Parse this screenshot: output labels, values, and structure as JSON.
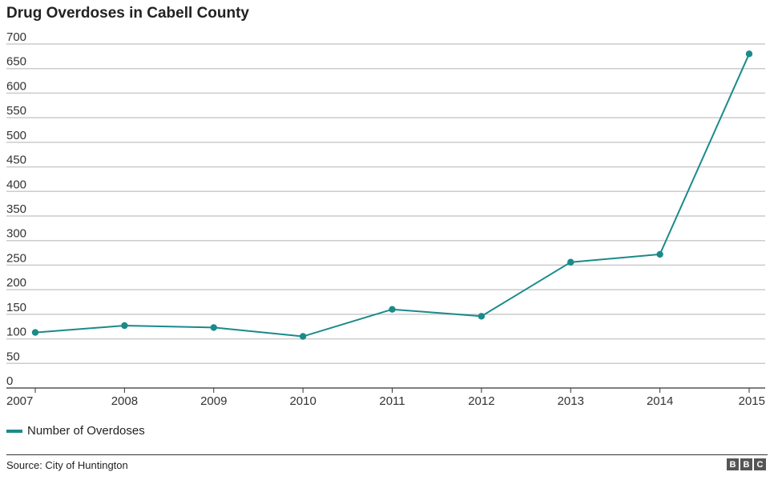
{
  "chart_data": {
    "type": "line",
    "title": "Drug Overdoses in Cabell County",
    "xlabel": "",
    "ylabel": "",
    "x": [
      "2007",
      "2008",
      "2009",
      "2010",
      "2011",
      "2012",
      "2013",
      "2014",
      "2015"
    ],
    "yticks": [
      0,
      50,
      100,
      150,
      200,
      250,
      300,
      350,
      400,
      450,
      500,
      550,
      600,
      650,
      700
    ],
    "ylim": [
      0,
      700
    ],
    "series": [
      {
        "name": "Number of Overdoses",
        "values": [
          113,
          127,
          123,
          105,
          160,
          146,
          256,
          272,
          680
        ]
      }
    ],
    "grid": true,
    "legend": "bottom-left",
    "colors": {
      "series": "#1a8a8a",
      "grid": "#cccccc",
      "axis": "#333333"
    }
  },
  "legend": {
    "label": "Number of Overdoses"
  },
  "footer": {
    "source": "Source: City of Huntington",
    "logo_letters": [
      "B",
      "B",
      "C"
    ]
  }
}
